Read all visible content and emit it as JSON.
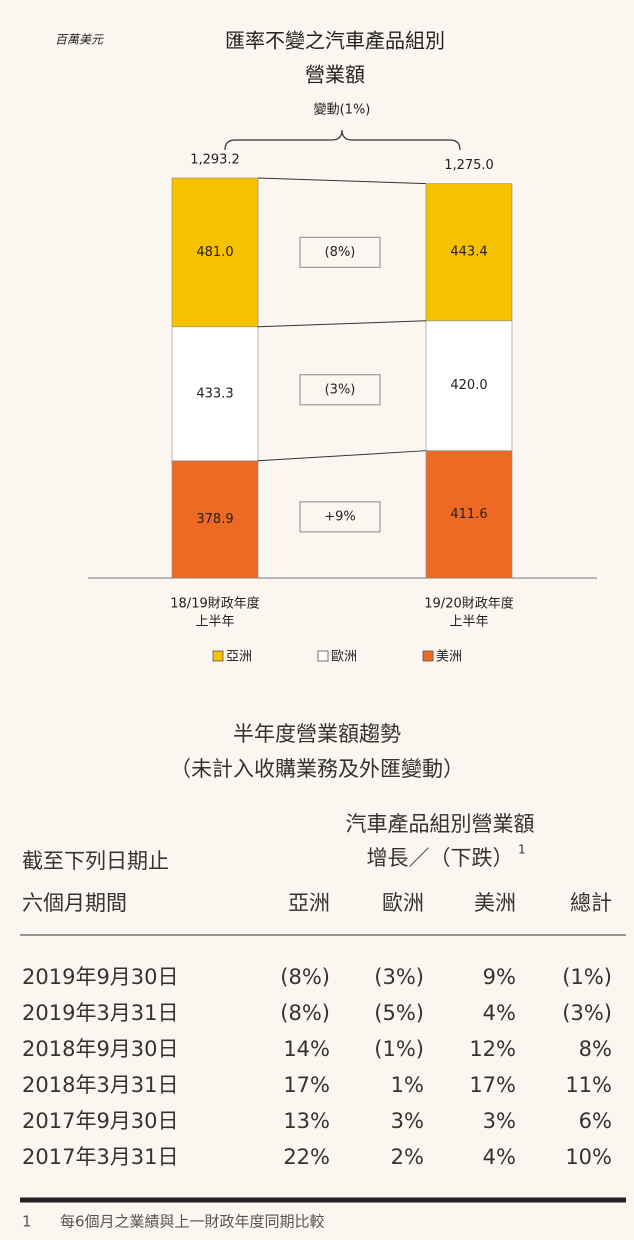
{
  "chart_data": {
    "type": "stacked-bar",
    "unit": "百萬美元",
    "title": [
      "匯率不變之汽車產品組別",
      "營業額"
    ],
    "change_label": "變動(1%)",
    "categories": [
      [
        "18/19財政年度",
        "上半年"
      ],
      [
        "19/20財政年度",
        "上半年"
      ]
    ],
    "totals": [
      1293.2,
      1275.0
    ],
    "total_labels": [
      "1,293.2",
      "1,275.0"
    ],
    "series": [
      {
        "name": "亞洲",
        "color": "#f6c200",
        "values": [
          481.0,
          443.4
        ],
        "value_labels": [
          "481.0",
          "443.4"
        ],
        "change_label": "(8%)"
      },
      {
        "name": "歐洲",
        "color": "#ffffff",
        "values": [
          433.3,
          420.0
        ],
        "value_labels": [
          "433.3",
          "420.0"
        ],
        "change_label": "(3%)"
      },
      {
        "name": "美洲",
        "color": "#ee6a24",
        "values": [
          378.9,
          411.6
        ],
        "value_labels": [
          "378.9",
          "411.6"
        ],
        "change_label": "+9%"
      }
    ]
  },
  "table": {
    "title": [
      "半年度營業額趨勢",
      "（未計入收購業務及外匯變動）"
    ],
    "group_header": [
      "汽車產品組別營業額",
      "增長／（下跌）"
    ],
    "group_note": "1",
    "row_header": [
      "截至下列日期止",
      "六個月期間"
    ],
    "columns": [
      "亞洲",
      "歐洲",
      "美洲",
      "總計"
    ],
    "rows": [
      [
        "2019年9月30日",
        "(8%)",
        "(3%)",
        "9%",
        "(1%)"
      ],
      [
        "2019年3月31日",
        "(8%)",
        "(5%)",
        "4%",
        "(3%)"
      ],
      [
        "2018年9月30日",
        "14%",
        "(1%)",
        "12%",
        "8%"
      ],
      [
        "2018年3月31日",
        "17%",
        "1%",
        "17%",
        "11%"
      ],
      [
        "2017年9月30日",
        "13%",
        "3%",
        "3%",
        "6%"
      ],
      [
        "2017年3月31日",
        "22%",
        "2%",
        "4%",
        "10%"
      ]
    ]
  },
  "footnote": {
    "marker": "1",
    "text": "每6個月之業績與上一財政年度同期比較"
  }
}
